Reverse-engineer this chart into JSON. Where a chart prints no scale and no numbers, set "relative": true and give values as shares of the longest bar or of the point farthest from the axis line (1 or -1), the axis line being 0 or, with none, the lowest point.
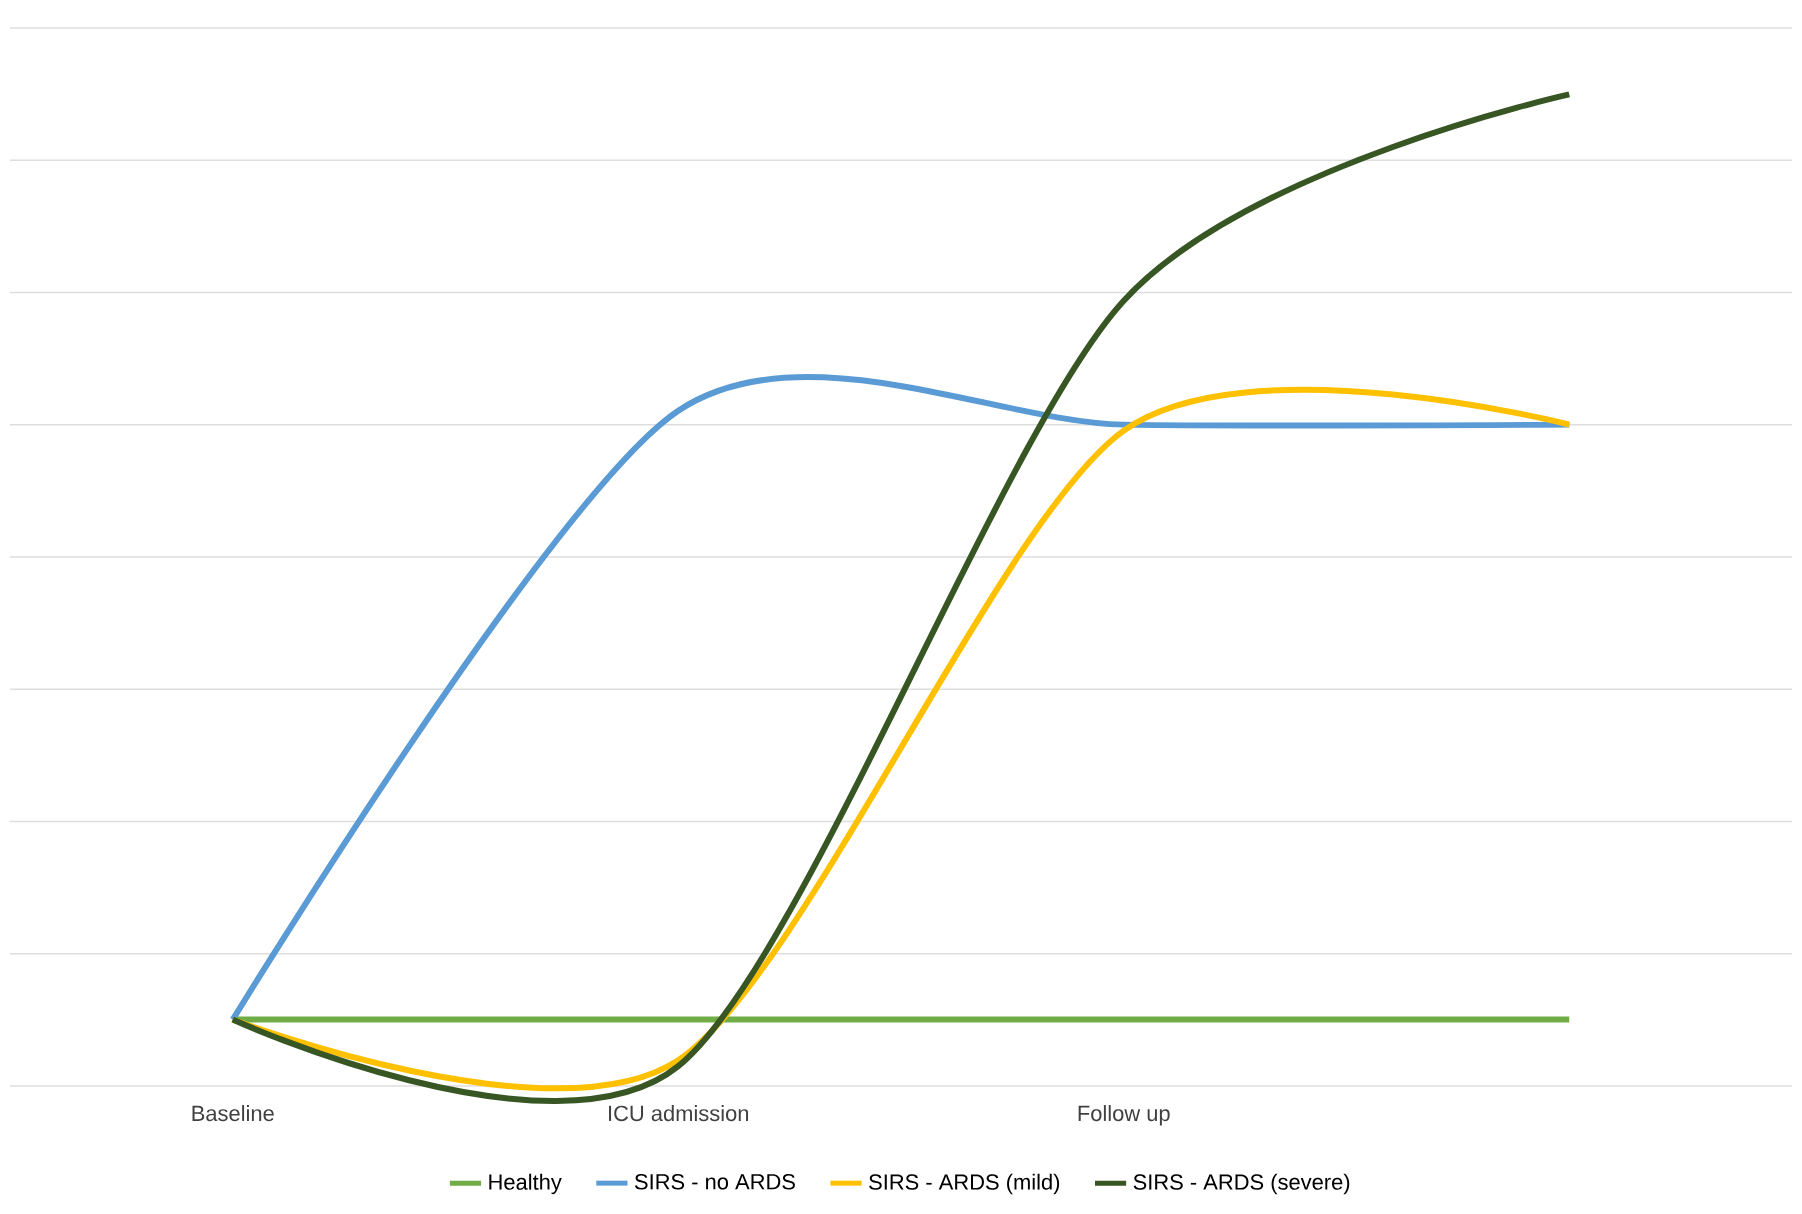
{
  "chart_data": {
    "type": "line",
    "relative": true,
    "categories": [
      "Baseline",
      "ICU admission",
      "Follow up",
      null
    ],
    "series": [
      {
        "name": "Healthy",
        "color": "#70ad47",
        "values": [
          0.067,
          0.067,
          0.067,
          0.067
        ]
      },
      {
        "name": "SIRS - no ARDS",
        "color": "#5b9bd5",
        "values": [
          0.067,
          0.681,
          0.667,
          0.667
        ]
      },
      {
        "name": "SIRS - ARDS (mild)",
        "color": "#ffc000",
        "values": [
          0.067,
          0.026,
          0.661,
          0.667
        ]
      },
      {
        "name": "SIRS - ARDS (severe)",
        "color": "#375623",
        "values": [
          0.067,
          0.02,
          0.792,
          1
        ]
      }
    ],
    "grid": "y",
    "legend": "bottom",
    "marker": "none",
    "line_style": "solid"
  }
}
